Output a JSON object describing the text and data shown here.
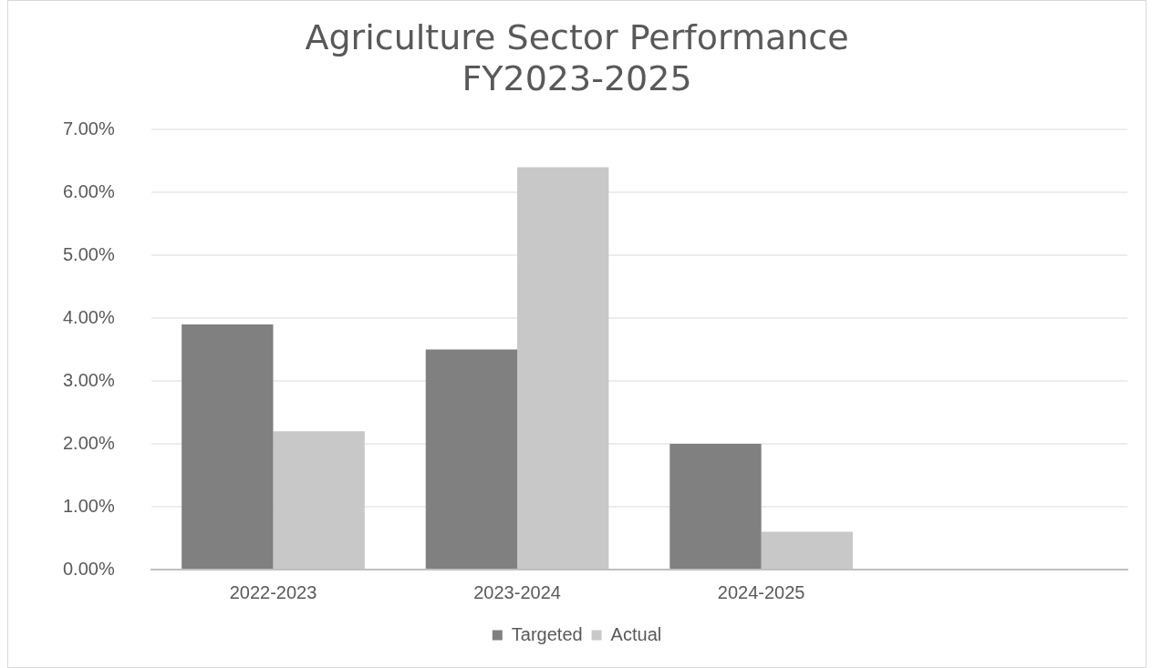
{
  "chart_data": {
    "type": "bar",
    "title": "Agriculture Sector Performance\nFY2023-2025",
    "categories": [
      "2022-2023",
      "2023-2024",
      "2024-2025",
      null
    ],
    "series": [
      {
        "name": "Targeted",
        "color": "#808080",
        "values": [
          3.9,
          3.5,
          2.0,
          null
        ]
      },
      {
        "name": "Actual",
        "color": "#c8c8c8",
        "values": [
          2.2,
          6.4,
          0.6,
          null
        ]
      }
    ],
    "ylim": [
      0,
      7
    ],
    "yticks": [
      {
        "value": 0,
        "label": "0.00%"
      },
      {
        "value": 1,
        "label": "1.00%"
      },
      {
        "value": 2,
        "label": "2.00%"
      },
      {
        "value": 3,
        "label": "3.00%"
      },
      {
        "value": 4,
        "label": "4.00%"
      },
      {
        "value": 5,
        "label": "5.00%"
      },
      {
        "value": 6,
        "label": "6.00%"
      },
      {
        "value": 7,
        "label": "7.00%"
      }
    ],
    "grid": "y",
    "legend": "bottom"
  }
}
